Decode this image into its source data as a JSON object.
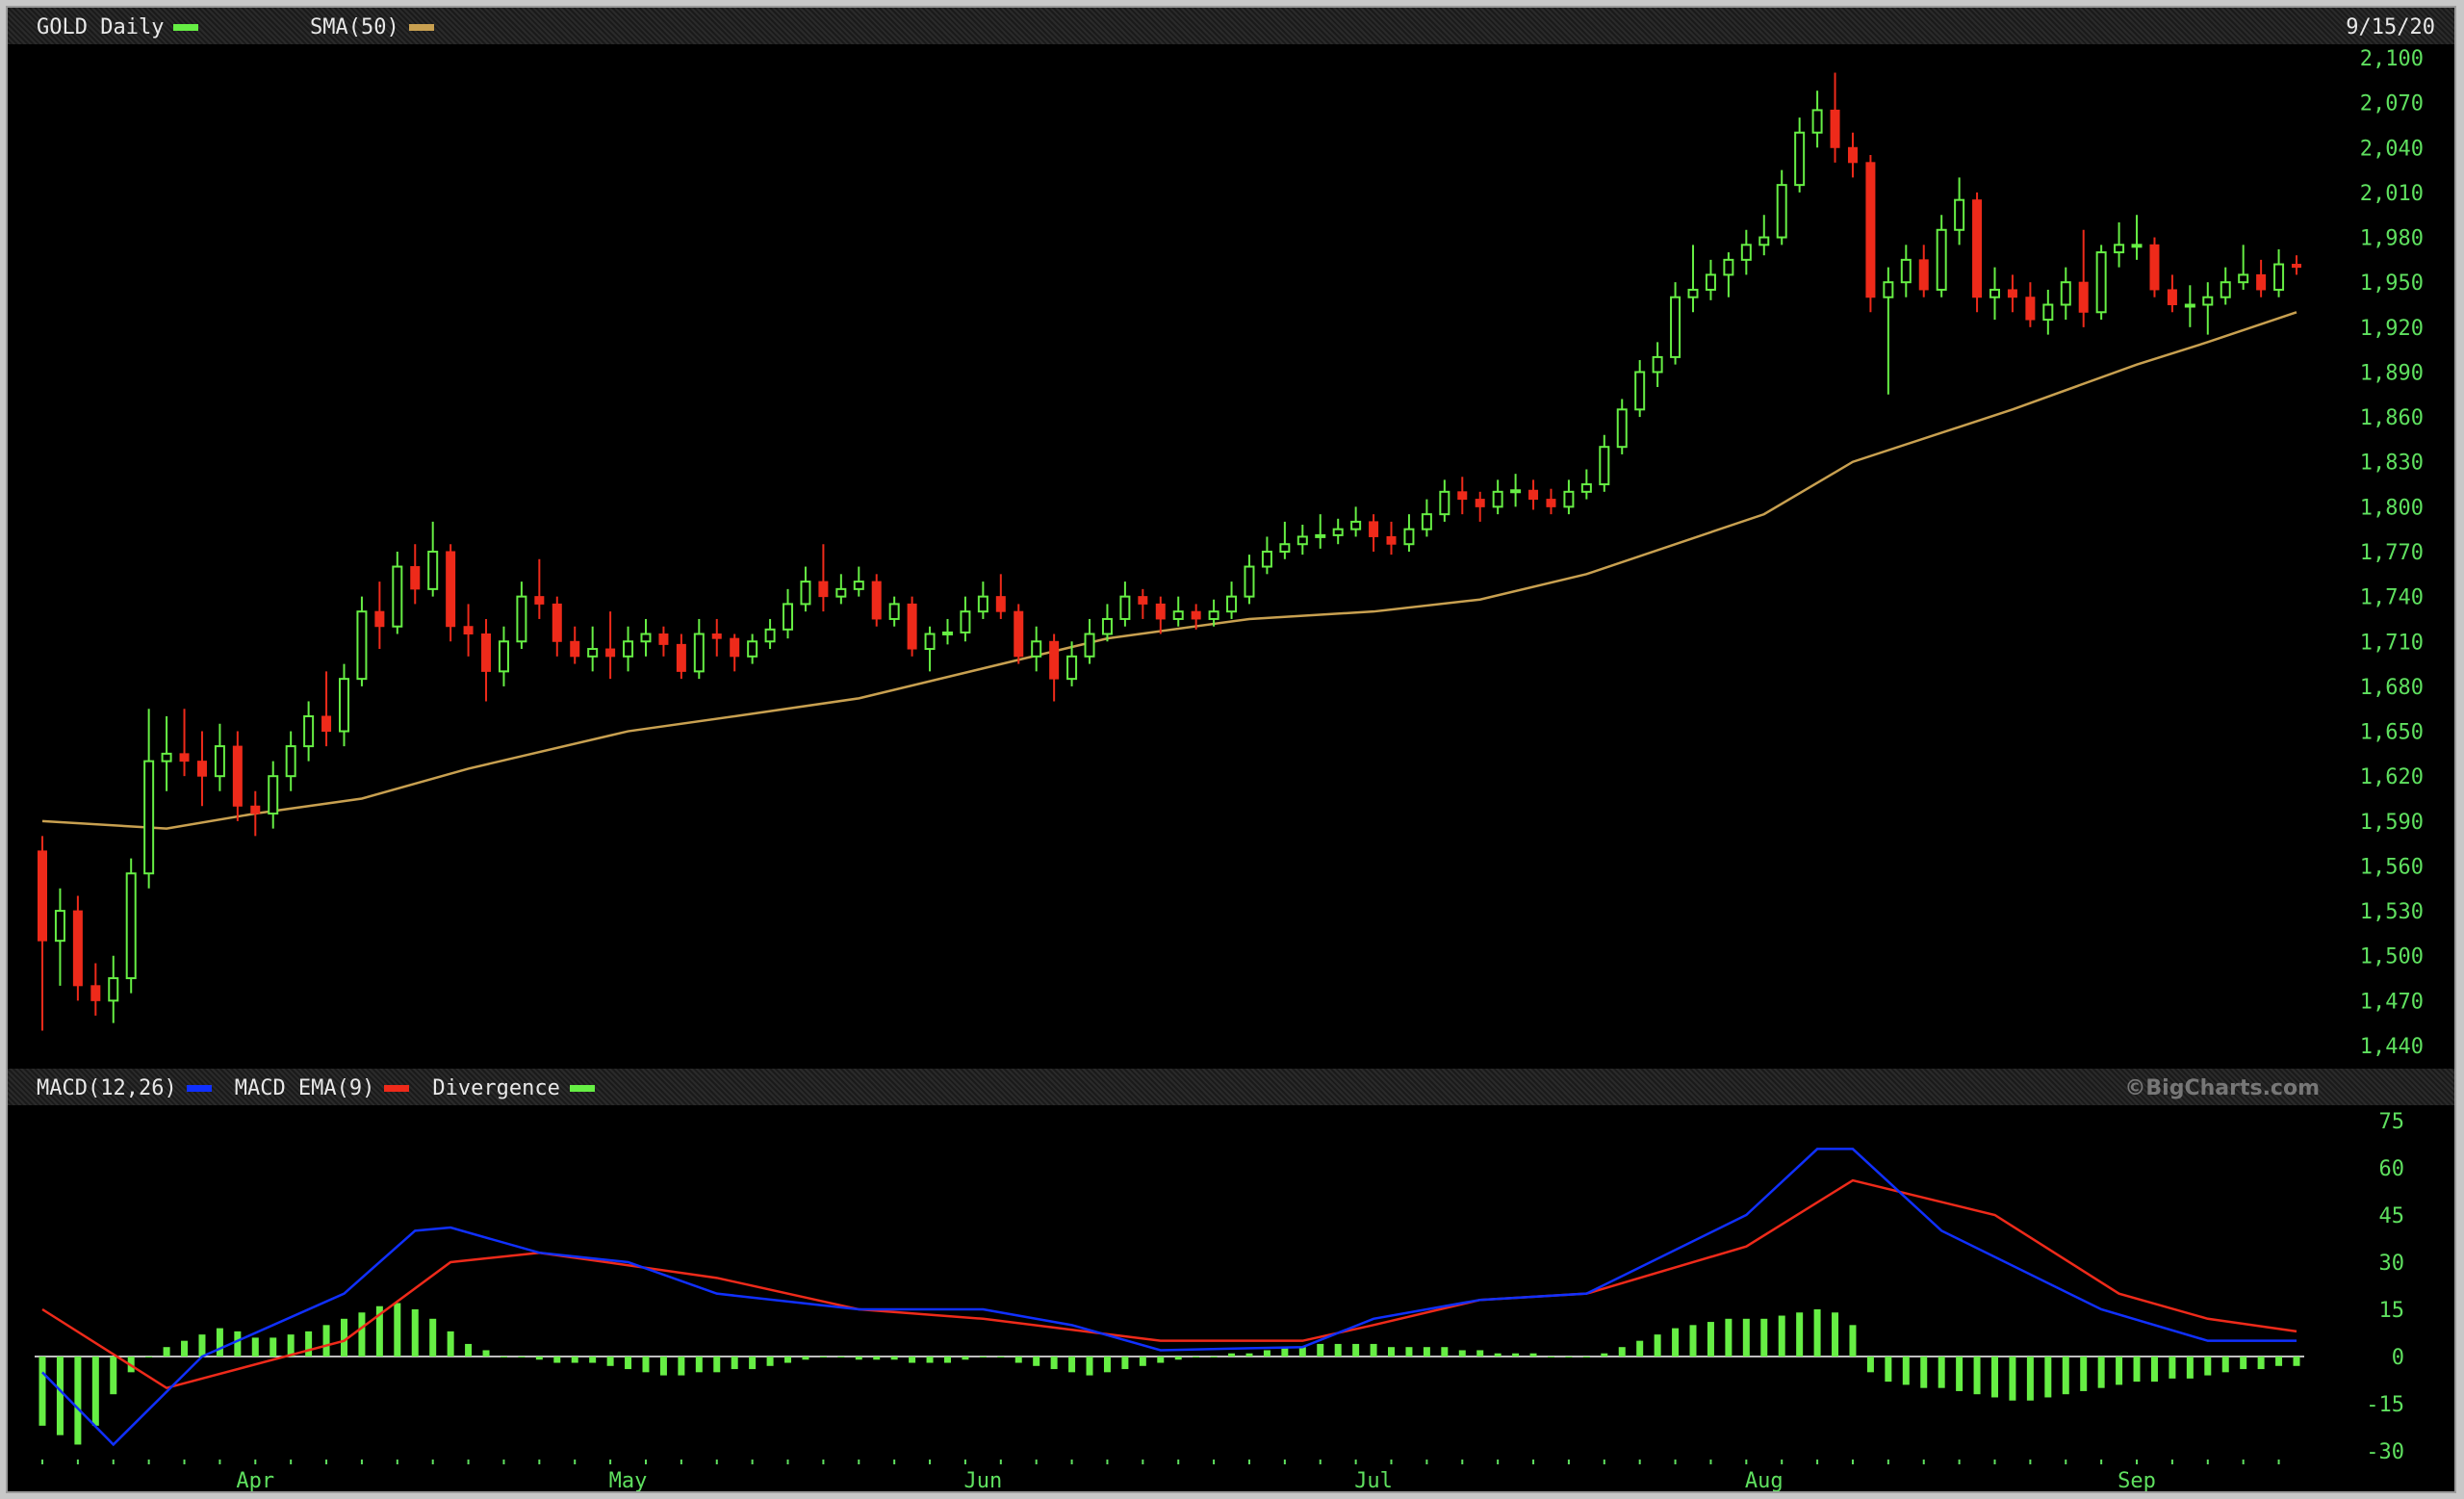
{
  "header": {
    "symbol_label": "GOLD Daily",
    "symbol_color": "#66ee44",
    "sma_label": "SMA(50)",
    "sma_color": "#c8a050",
    "date": "9/15/20"
  },
  "macd_header": {
    "macd_label": "MACD(12,26)",
    "macd_color": "#1030ff",
    "ema_label": "MACD EMA(9)",
    "ema_color": "#ee2a1a",
    "div_label": "Divergence",
    "div_color": "#66ee44",
    "watermark": "©BigCharts.com"
  },
  "chart_data": [
    {
      "type": "candlestick",
      "title": "GOLD Daily",
      "ylim": [
        1440,
        2100
      ],
      "y_ticks": [
        "2,100",
        "2,070",
        "2,040",
        "2,010",
        "1,980",
        "1,950",
        "1,920",
        "1,890",
        "1,860",
        "1,830",
        "1,800",
        "1,770",
        "1,740",
        "1,710",
        "1,680",
        "1,650",
        "1,620",
        "1,590",
        "1,560",
        "1,530",
        "1,500",
        "1,470",
        "1,440"
      ],
      "x_ticks": [
        {
          "label": "Apr",
          "date": "4/1"
        },
        {
          "label": "May",
          "date": "5/1"
        },
        {
          "label": "Jun",
          "date": "6/1"
        },
        {
          "label": "Jul",
          "date": "7/1"
        },
        {
          "label": "Aug",
          "date": "8/3"
        },
        {
          "label": "Sep",
          "date": "9/1"
        }
      ],
      "up_color": "#66ee44",
      "down_color": "#ee2a1a",
      "grid": false,
      "candles_columns": [
        "date",
        "open",
        "high",
        "low",
        "close"
      ],
      "candles": [
        [
          "3/16",
          1570,
          1580,
          1450,
          1510
        ],
        [
          "3/17",
          1510,
          1545,
          1480,
          1530
        ],
        [
          "3/18",
          1530,
          1540,
          1470,
          1480
        ],
        [
          "3/19",
          1480,
          1495,
          1460,
          1470
        ],
        [
          "3/20",
          1470,
          1500,
          1455,
          1485
        ],
        [
          "3/23",
          1485,
          1565,
          1475,
          1555
        ],
        [
          "3/24",
          1555,
          1665,
          1545,
          1630
        ],
        [
          "3/25",
          1630,
          1660,
          1610,
          1635
        ],
        [
          "3/26",
          1635,
          1665,
          1620,
          1630
        ],
        [
          "3/27",
          1630,
          1650,
          1600,
          1620
        ],
        [
          "3/30",
          1620,
          1655,
          1610,
          1640
        ],
        [
          "3/31",
          1640,
          1650,
          1590,
          1600
        ],
        [
          "4/1",
          1600,
          1610,
          1580,
          1595
        ],
        [
          "4/2",
          1595,
          1630,
          1585,
          1620
        ],
        [
          "4/3",
          1620,
          1650,
          1610,
          1640
        ],
        [
          "4/6",
          1640,
          1670,
          1630,
          1660
        ],
        [
          "4/7",
          1660,
          1690,
          1640,
          1650
        ],
        [
          "4/8",
          1650,
          1695,
          1640,
          1685
        ],
        [
          "4/9",
          1685,
          1740,
          1680,
          1730
        ],
        [
          "4/13",
          1730,
          1750,
          1705,
          1720
        ],
        [
          "4/14",
          1720,
          1770,
          1715,
          1760
        ],
        [
          "4/15",
          1760,
          1775,
          1735,
          1745
        ],
        [
          "4/16",
          1745,
          1790,
          1740,
          1770
        ],
        [
          "4/17",
          1770,
          1775,
          1710,
          1720
        ],
        [
          "4/20",
          1720,
          1735,
          1700,
          1715
        ],
        [
          "4/21",
          1715,
          1725,
          1670,
          1690
        ],
        [
          "4/22",
          1690,
          1720,
          1680,
          1710
        ],
        [
          "4/23",
          1710,
          1750,
          1705,
          1740
        ],
        [
          "4/24",
          1740,
          1765,
          1725,
          1735
        ],
        [
          "4/27",
          1735,
          1740,
          1700,
          1710
        ],
        [
          "4/28",
          1710,
          1720,
          1695,
          1700
        ],
        [
          "4/29",
          1700,
          1720,
          1690,
          1705
        ],
        [
          "4/30",
          1705,
          1730,
          1685,
          1700
        ],
        [
          "5/1",
          1700,
          1720,
          1690,
          1710
        ],
        [
          "5/4",
          1710,
          1725,
          1700,
          1715
        ],
        [
          "5/5",
          1715,
          1720,
          1700,
          1708
        ],
        [
          "5/6",
          1708,
          1715,
          1685,
          1690
        ],
        [
          "5/7",
          1690,
          1725,
          1685,
          1715
        ],
        [
          "5/8",
          1715,
          1725,
          1700,
          1712
        ],
        [
          "5/11",
          1712,
          1715,
          1690,
          1700
        ],
        [
          "5/12",
          1700,
          1715,
          1695,
          1710
        ],
        [
          "5/13",
          1710,
          1725,
          1705,
          1718
        ],
        [
          "5/14",
          1718,
          1745,
          1712,
          1735
        ],
        [
          "5/15",
          1735,
          1760,
          1730,
          1750
        ],
        [
          "5/18",
          1750,
          1775,
          1730,
          1740
        ],
        [
          "5/19",
          1740,
          1755,
          1735,
          1745
        ],
        [
          "5/20",
          1745,
          1760,
          1740,
          1750
        ],
        [
          "5/21",
          1750,
          1755,
          1720,
          1725
        ],
        [
          "5/22",
          1725,
          1740,
          1720,
          1735
        ],
        [
          "5/26",
          1735,
          1740,
          1700,
          1705
        ],
        [
          "5/27",
          1705,
          1720,
          1690,
          1715
        ],
        [
          "5/28",
          1715,
          1725,
          1708,
          1716
        ],
        [
          "5/29",
          1716,
          1740,
          1710,
          1730
        ],
        [
          "6/1",
          1730,
          1750,
          1725,
          1740
        ],
        [
          "6/2",
          1740,
          1755,
          1725,
          1730
        ],
        [
          "6/3",
          1730,
          1735,
          1695,
          1700
        ],
        [
          "6/4",
          1700,
          1720,
          1690,
          1710
        ],
        [
          "6/5",
          1710,
          1715,
          1670,
          1685
        ],
        [
          "6/8",
          1685,
          1710,
          1680,
          1700
        ],
        [
          "6/9",
          1700,
          1725,
          1695,
          1715
        ],
        [
          "6/10",
          1715,
          1735,
          1710,
          1725
        ],
        [
          "6/11",
          1725,
          1750,
          1720,
          1740
        ],
        [
          "6/12",
          1740,
          1745,
          1725,
          1735
        ],
        [
          "6/15",
          1735,
          1740,
          1715,
          1725
        ],
        [
          "6/16",
          1725,
          1740,
          1720,
          1730
        ],
        [
          "6/17",
          1730,
          1735,
          1718,
          1725
        ],
        [
          "6/18",
          1725,
          1738,
          1720,
          1730
        ],
        [
          "6/19",
          1730,
          1750,
          1725,
          1740
        ],
        [
          "6/22",
          1740,
          1768,
          1735,
          1760
        ],
        [
          "6/23",
          1760,
          1780,
          1755,
          1770
        ],
        [
          "6/24",
          1770,
          1790,
          1765,
          1775
        ],
        [
          "6/25",
          1775,
          1788,
          1768,
          1780
        ],
        [
          "6/26",
          1780,
          1795,
          1772,
          1781
        ],
        [
          "6/29",
          1781,
          1792,
          1775,
          1785
        ],
        [
          "6/30",
          1785,
          1800,
          1780,
          1790
        ],
        [
          "7/1",
          1790,
          1795,
          1770,
          1780
        ],
        [
          "7/2",
          1780,
          1790,
          1768,
          1775
        ],
        [
          "7/6",
          1775,
          1795,
          1770,
          1785
        ],
        [
          "7/7",
          1785,
          1805,
          1780,
          1795
        ],
        [
          "7/8",
          1795,
          1818,
          1790,
          1810
        ],
        [
          "7/9",
          1810,
          1820,
          1795,
          1805
        ],
        [
          "7/10",
          1805,
          1810,
          1790,
          1800
        ],
        [
          "7/13",
          1800,
          1818,
          1795,
          1810
        ],
        [
          "7/14",
          1810,
          1822,
          1800,
          1811
        ],
        [
          "7/15",
          1811,
          1818,
          1798,
          1805
        ],
        [
          "7/16",
          1805,
          1812,
          1795,
          1800
        ],
        [
          "7/17",
          1800,
          1818,
          1795,
          1810
        ],
        [
          "7/20",
          1810,
          1825,
          1805,
          1815
        ],
        [
          "7/21",
          1815,
          1848,
          1810,
          1840
        ],
        [
          "7/22",
          1840,
          1872,
          1835,
          1865
        ],
        [
          "7/23",
          1865,
          1898,
          1860,
          1890
        ],
        [
          "7/24",
          1890,
          1910,
          1880,
          1900
        ],
        [
          "7/27",
          1900,
          1950,
          1895,
          1940
        ],
        [
          "7/28",
          1940,
          1975,
          1930,
          1945
        ],
        [
          "7/29",
          1945,
          1965,
          1938,
          1955
        ],
        [
          "7/30",
          1955,
          1970,
          1940,
          1965
        ],
        [
          "7/31",
          1965,
          1985,
          1955,
          1975
        ],
        [
          "8/3",
          1975,
          1995,
          1968,
          1980
        ],
        [
          "8/4",
          1980,
          2025,
          1975,
          2015
        ],
        [
          "8/5",
          2015,
          2060,
          2010,
          2050
        ],
        [
          "8/6",
          2050,
          2078,
          2040,
          2065
        ],
        [
          "8/7",
          2065,
          2090,
          2030,
          2040
        ],
        [
          "8/10",
          2040,
          2050,
          2020,
          2030
        ],
        [
          "8/11",
          2030,
          2035,
          1930,
          1940
        ],
        [
          "8/12",
          1940,
          1960,
          1875,
          1950
        ],
        [
          "8/13",
          1950,
          1975,
          1940,
          1965
        ],
        [
          "8/14",
          1965,
          1975,
          1940,
          1945
        ],
        [
          "8/17",
          1945,
          1995,
          1940,
          1985
        ],
        [
          "8/18",
          1985,
          2020,
          1975,
          2005
        ],
        [
          "8/19",
          2005,
          2010,
          1930,
          1940
        ],
        [
          "8/20",
          1940,
          1960,
          1925,
          1945
        ],
        [
          "8/21",
          1945,
          1955,
          1930,
          1940
        ],
        [
          "8/24",
          1940,
          1950,
          1920,
          1925
        ],
        [
          "8/25",
          1925,
          1945,
          1915,
          1935
        ],
        [
          "8/26",
          1935,
          1960,
          1925,
          1950
        ],
        [
          "8/27",
          1950,
          1985,
          1920,
          1930
        ],
        [
          "8/28",
          1930,
          1975,
          1925,
          1970
        ],
        [
          "8/31",
          1970,
          1990,
          1960,
          1975
        ],
        [
          "9/1",
          1975,
          1995,
          1965,
          1975
        ],
        [
          "9/2",
          1975,
          1980,
          1940,
          1945
        ],
        [
          "9/3",
          1945,
          1955,
          1930,
          1935
        ],
        [
          "9/4",
          1935,
          1948,
          1920,
          1935
        ],
        [
          "9/8",
          1935,
          1950,
          1915,
          1940
        ],
        [
          "9/9",
          1940,
          1960,
          1935,
          1950
        ],
        [
          "9/10",
          1950,
          1975,
          1945,
          1955
        ],
        [
          "9/11",
          1955,
          1965,
          1940,
          1945
        ],
        [
          "9/14",
          1945,
          1972,
          1940,
          1962
        ],
        [
          "9/15",
          1962,
          1968,
          1955,
          1960
        ]
      ],
      "sma50": [
        [
          "3/16",
          1590
        ],
        [
          "3/25",
          1585
        ],
        [
          "4/1",
          1595
        ],
        [
          "4/9",
          1605
        ],
        [
          "4/20",
          1625
        ],
        [
          "5/1",
          1650
        ],
        [
          "5/11",
          1660
        ],
        [
          "5/20",
          1672
        ],
        [
          "6/1",
          1692
        ],
        [
          "6/10",
          1712
        ],
        [
          "6/22",
          1725
        ],
        [
          "7/1",
          1730
        ],
        [
          "7/10",
          1738
        ],
        [
          "7/20",
          1755
        ],
        [
          "8/3",
          1795
        ],
        [
          "8/10",
          1830
        ],
        [
          "8/21",
          1865
        ],
        [
          "9/1",
          1895
        ],
        [
          "9/8",
          1910
        ],
        [
          "9/15",
          1930
        ]
      ]
    },
    {
      "type": "macd",
      "ylim": [
        -30,
        75
      ],
      "y_ticks": [
        "75",
        "60",
        "45",
        "30",
        "15",
        "0",
        "-15",
        "-30"
      ],
      "macd": [
        [
          "3/16",
          -5
        ],
        [
          "3/20",
          -28
        ],
        [
          "3/27",
          0
        ],
        [
          "4/8",
          20
        ],
        [
          "4/15",
          40
        ],
        [
          "4/17",
          41
        ],
        [
          "4/24",
          33
        ],
        [
          "5/1",
          30
        ],
        [
          "5/8",
          20
        ],
        [
          "5/20",
          15
        ],
        [
          "6/1",
          15
        ],
        [
          "6/8",
          10
        ],
        [
          "6/15",
          2
        ],
        [
          "6/25",
          3
        ],
        [
          "7/1",
          12
        ],
        [
          "7/10",
          18
        ],
        [
          "7/20",
          20
        ],
        [
          "7/31",
          45
        ],
        [
          "8/6",
          66
        ],
        [
          "8/10",
          66
        ],
        [
          "8/17",
          40
        ],
        [
          "8/28",
          15
        ],
        [
          "9/8",
          5
        ],
        [
          "9/15",
          5
        ]
      ],
      "signal": [
        [
          "3/16",
          15
        ],
        [
          "3/25",
          -10
        ],
        [
          "4/8",
          5
        ],
        [
          "4/17",
          30
        ],
        [
          "4/24",
          33
        ],
        [
          "5/8",
          25
        ],
        [
          "5/20",
          15
        ],
        [
          "6/1",
          12
        ],
        [
          "6/15",
          5
        ],
        [
          "6/25",
          5
        ],
        [
          "7/1",
          10
        ],
        [
          "7/10",
          18
        ],
        [
          "7/20",
          20
        ],
        [
          "7/31",
          35
        ],
        [
          "8/10",
          56
        ],
        [
          "8/20",
          45
        ],
        [
          "8/31",
          20
        ],
        [
          "9/8",
          12
        ],
        [
          "9/15",
          8
        ]
      ],
      "divergence": [
        -22,
        -25,
        -28,
        -22,
        -12,
        -5,
        0,
        3,
        5,
        7,
        9,
        8,
        6,
        6,
        7,
        8,
        10,
        12,
        14,
        16,
        17,
        15,
        12,
        8,
        4,
        2,
        0,
        0,
        -1,
        -2,
        -2,
        -2,
        -3,
        -4,
        -5,
        -6,
        -6,
        -5,
        -5,
        -4,
        -4,
        -3,
        -2,
        -1,
        0,
        0,
        -1,
        -1,
        -1,
        -2,
        -2,
        -2,
        -1,
        0,
        0,
        -2,
        -3,
        -4,
        -5,
        -6,
        -5,
        -4,
        -3,
        -2,
        -1,
        0,
        0,
        1,
        1,
        2,
        3,
        3,
        4,
        4,
        4,
        4,
        3,
        3,
        3,
        3,
        2,
        2,
        1,
        1,
        1,
        0,
        0,
        0,
        1,
        3,
        5,
        7,
        9,
        10,
        11,
        12,
        12,
        12,
        13,
        14,
        15,
        14,
        10,
        -5,
        -8,
        -9,
        -10,
        -10,
        -11,
        -12,
        -13,
        -14,
        -14,
        -13,
        -12,
        -11,
        -10,
        -9,
        -8,
        -8,
        -7,
        -7,
        -6,
        -5,
        -4,
        -4,
        -3,
        -3
      ]
    }
  ]
}
